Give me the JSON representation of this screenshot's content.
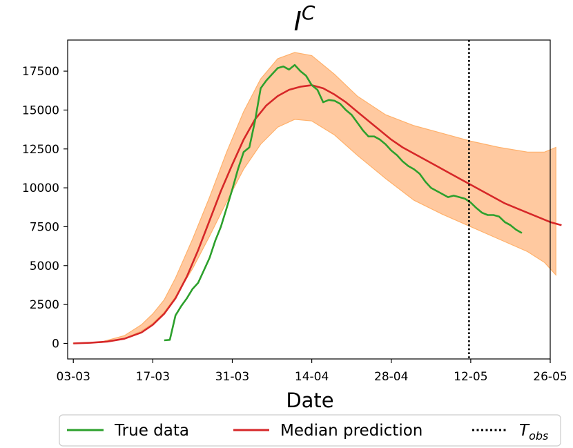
{
  "chart_data": {
    "type": "line",
    "title": "I",
    "title_superscript": "C",
    "xlabel": "Date",
    "ylabel": "",
    "xlim": [
      -1,
      84
    ],
    "ylim": [
      -1000,
      19500
    ],
    "x_ticks": [
      0,
      14,
      28,
      42,
      56,
      70,
      84
    ],
    "x_tick_labels": [
      "03-03",
      "17-03",
      "31-03",
      "14-04",
      "28-04",
      "12-05",
      "26-05"
    ],
    "y_ticks": [
      0,
      2500,
      5000,
      7500,
      10000,
      12500,
      15000,
      17500
    ],
    "y_tick_labels": [
      "0",
      "2500",
      "5000",
      "7500",
      "10000",
      "12500",
      "15000",
      "17500"
    ],
    "t_obs": 69.7,
    "t_obs_label": "T",
    "t_obs_subscript": "obs",
    "legend": {
      "placement": "below",
      "entries": [
        "True data",
        "Median prediction"
      ]
    },
    "band": {
      "name": "Prediction interval",
      "x": [
        0,
        5,
        9,
        12,
        14,
        16,
        18,
        21,
        24,
        27,
        30,
        33,
        36,
        39,
        42,
        46,
        50,
        55,
        60,
        65,
        70,
        75,
        80,
        83,
        85
      ],
      "lower": [
        0,
        60,
        300,
        800,
        1300,
        2000,
        3000,
        4800,
        6900,
        9100,
        11200,
        12800,
        13900,
        14400,
        14300,
        13400,
        12100,
        10600,
        9200,
        8300,
        7500,
        6700,
        5900,
        5200,
        4400
      ],
      "upper": [
        20,
        100,
        500,
        1200,
        1900,
        2800,
        4200,
        6700,
        9400,
        12300,
        14900,
        17000,
        18300,
        18700,
        18500,
        17300,
        15900,
        14700,
        14000,
        13500,
        13000,
        12600,
        12300,
        12300,
        12600
      ]
    },
    "series": [
      {
        "name": "True data",
        "color": "#2ca02c",
        "x": [
          16,
          17,
          18,
          19,
          20,
          21,
          22,
          23,
          24,
          25,
          26,
          27,
          28,
          29,
          30,
          31,
          32,
          33,
          34,
          35,
          36,
          37,
          38,
          39,
          40,
          41,
          42,
          43,
          44,
          45,
          46,
          47,
          48,
          49,
          50,
          51,
          52,
          53,
          54,
          55,
          56,
          57,
          58,
          59,
          60,
          61,
          62,
          63,
          64,
          65,
          66,
          67,
          68,
          69,
          70,
          71,
          72,
          73,
          74,
          75,
          76,
          77,
          78,
          79
        ],
        "y": [
          200,
          230,
          1800,
          2400,
          2900,
          3500,
          3900,
          4700,
          5500,
          6600,
          7500,
          8700,
          9900,
          11200,
          12300,
          12600,
          14300,
          16400,
          16900,
          17300,
          17700,
          17800,
          17600,
          17900,
          17500,
          17200,
          16600,
          16300,
          15500,
          15650,
          15600,
          15400,
          15000,
          14700,
          14200,
          13700,
          13300,
          13300,
          13100,
          12800,
          12400,
          12100,
          11700,
          11400,
          11200,
          10900,
          10400,
          10000,
          9800,
          9600,
          9400,
          9500,
          9400,
          9300,
          9050,
          8700,
          8400,
          8250,
          8250,
          8150,
          7800,
          7600,
          7300,
          7100
        ]
      },
      {
        "name": "Median prediction",
        "color": "#d62728",
        "x": [
          0,
          3,
          6,
          9,
          12,
          14,
          16,
          18,
          20,
          22,
          24,
          26,
          28,
          30,
          32,
          34,
          36,
          38,
          40,
          42,
          44,
          46,
          48,
          50,
          52,
          54,
          56,
          58,
          60,
          62,
          64,
          66,
          68,
          70,
          72,
          74,
          76,
          78,
          80,
          82,
          84,
          86
        ],
        "y": [
          0,
          40,
          120,
          300,
          700,
          1200,
          1900,
          2900,
          4300,
          6000,
          7900,
          9800,
          11500,
          13100,
          14400,
          15300,
          15900,
          16300,
          16500,
          16600,
          16400,
          16000,
          15500,
          14900,
          14300,
          13700,
          13100,
          12600,
          12200,
          11800,
          11400,
          11000,
          10600,
          10200,
          9800,
          9400,
          9000,
          8700,
          8400,
          8100,
          7800,
          7600
        ]
      }
    ]
  }
}
